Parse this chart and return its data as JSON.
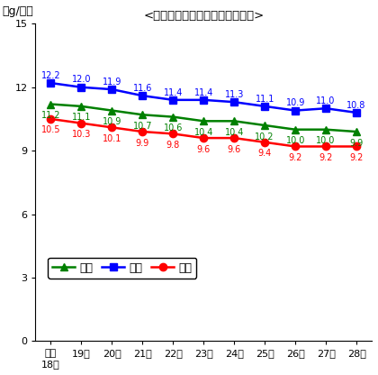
{
  "title": "<食塩摂取量の平均値の年次推移>",
  "ylabel": "（g/日）",
  "xlabels": [
    "平成\n18年",
    "19年",
    "20年",
    "21年",
    "22年",
    "23年",
    "24年",
    "25年",
    "26年",
    "27年",
    "28年"
  ],
  "yticks": [
    0,
    3,
    6,
    9,
    12,
    15
  ],
  "ylim": [
    0,
    15
  ],
  "series": [
    {
      "name": "総数",
      "values": [
        11.2,
        11.1,
        10.9,
        10.7,
        10.6,
        10.4,
        10.4,
        10.2,
        10.0,
        10.0,
        9.9
      ],
      "color": "#008000",
      "marker": "^",
      "markersize": 6
    },
    {
      "name": "男性",
      "values": [
        12.2,
        12.0,
        11.9,
        11.6,
        11.4,
        11.4,
        11.3,
        11.1,
        10.9,
        11.0,
        10.8
      ],
      "color": "#0000FF",
      "marker": "s",
      "markersize": 6
    },
    {
      "name": "女性",
      "values": [
        10.5,
        10.3,
        10.1,
        9.9,
        9.8,
        9.6,
        9.6,
        9.4,
        9.2,
        9.2,
        9.2
      ],
      "color": "#FF0000",
      "marker": "o",
      "markersize": 6
    }
  ],
  "annotation_offsets": {
    "総数": -9,
    "男性": 6,
    "女性": -9
  },
  "background_color": "#ffffff",
  "annotation_fontsize": 7.0,
  "tick_fontsize": 8,
  "ylabel_fontsize": 9,
  "title_fontsize": 9.5,
  "legend_fontsize": 9
}
